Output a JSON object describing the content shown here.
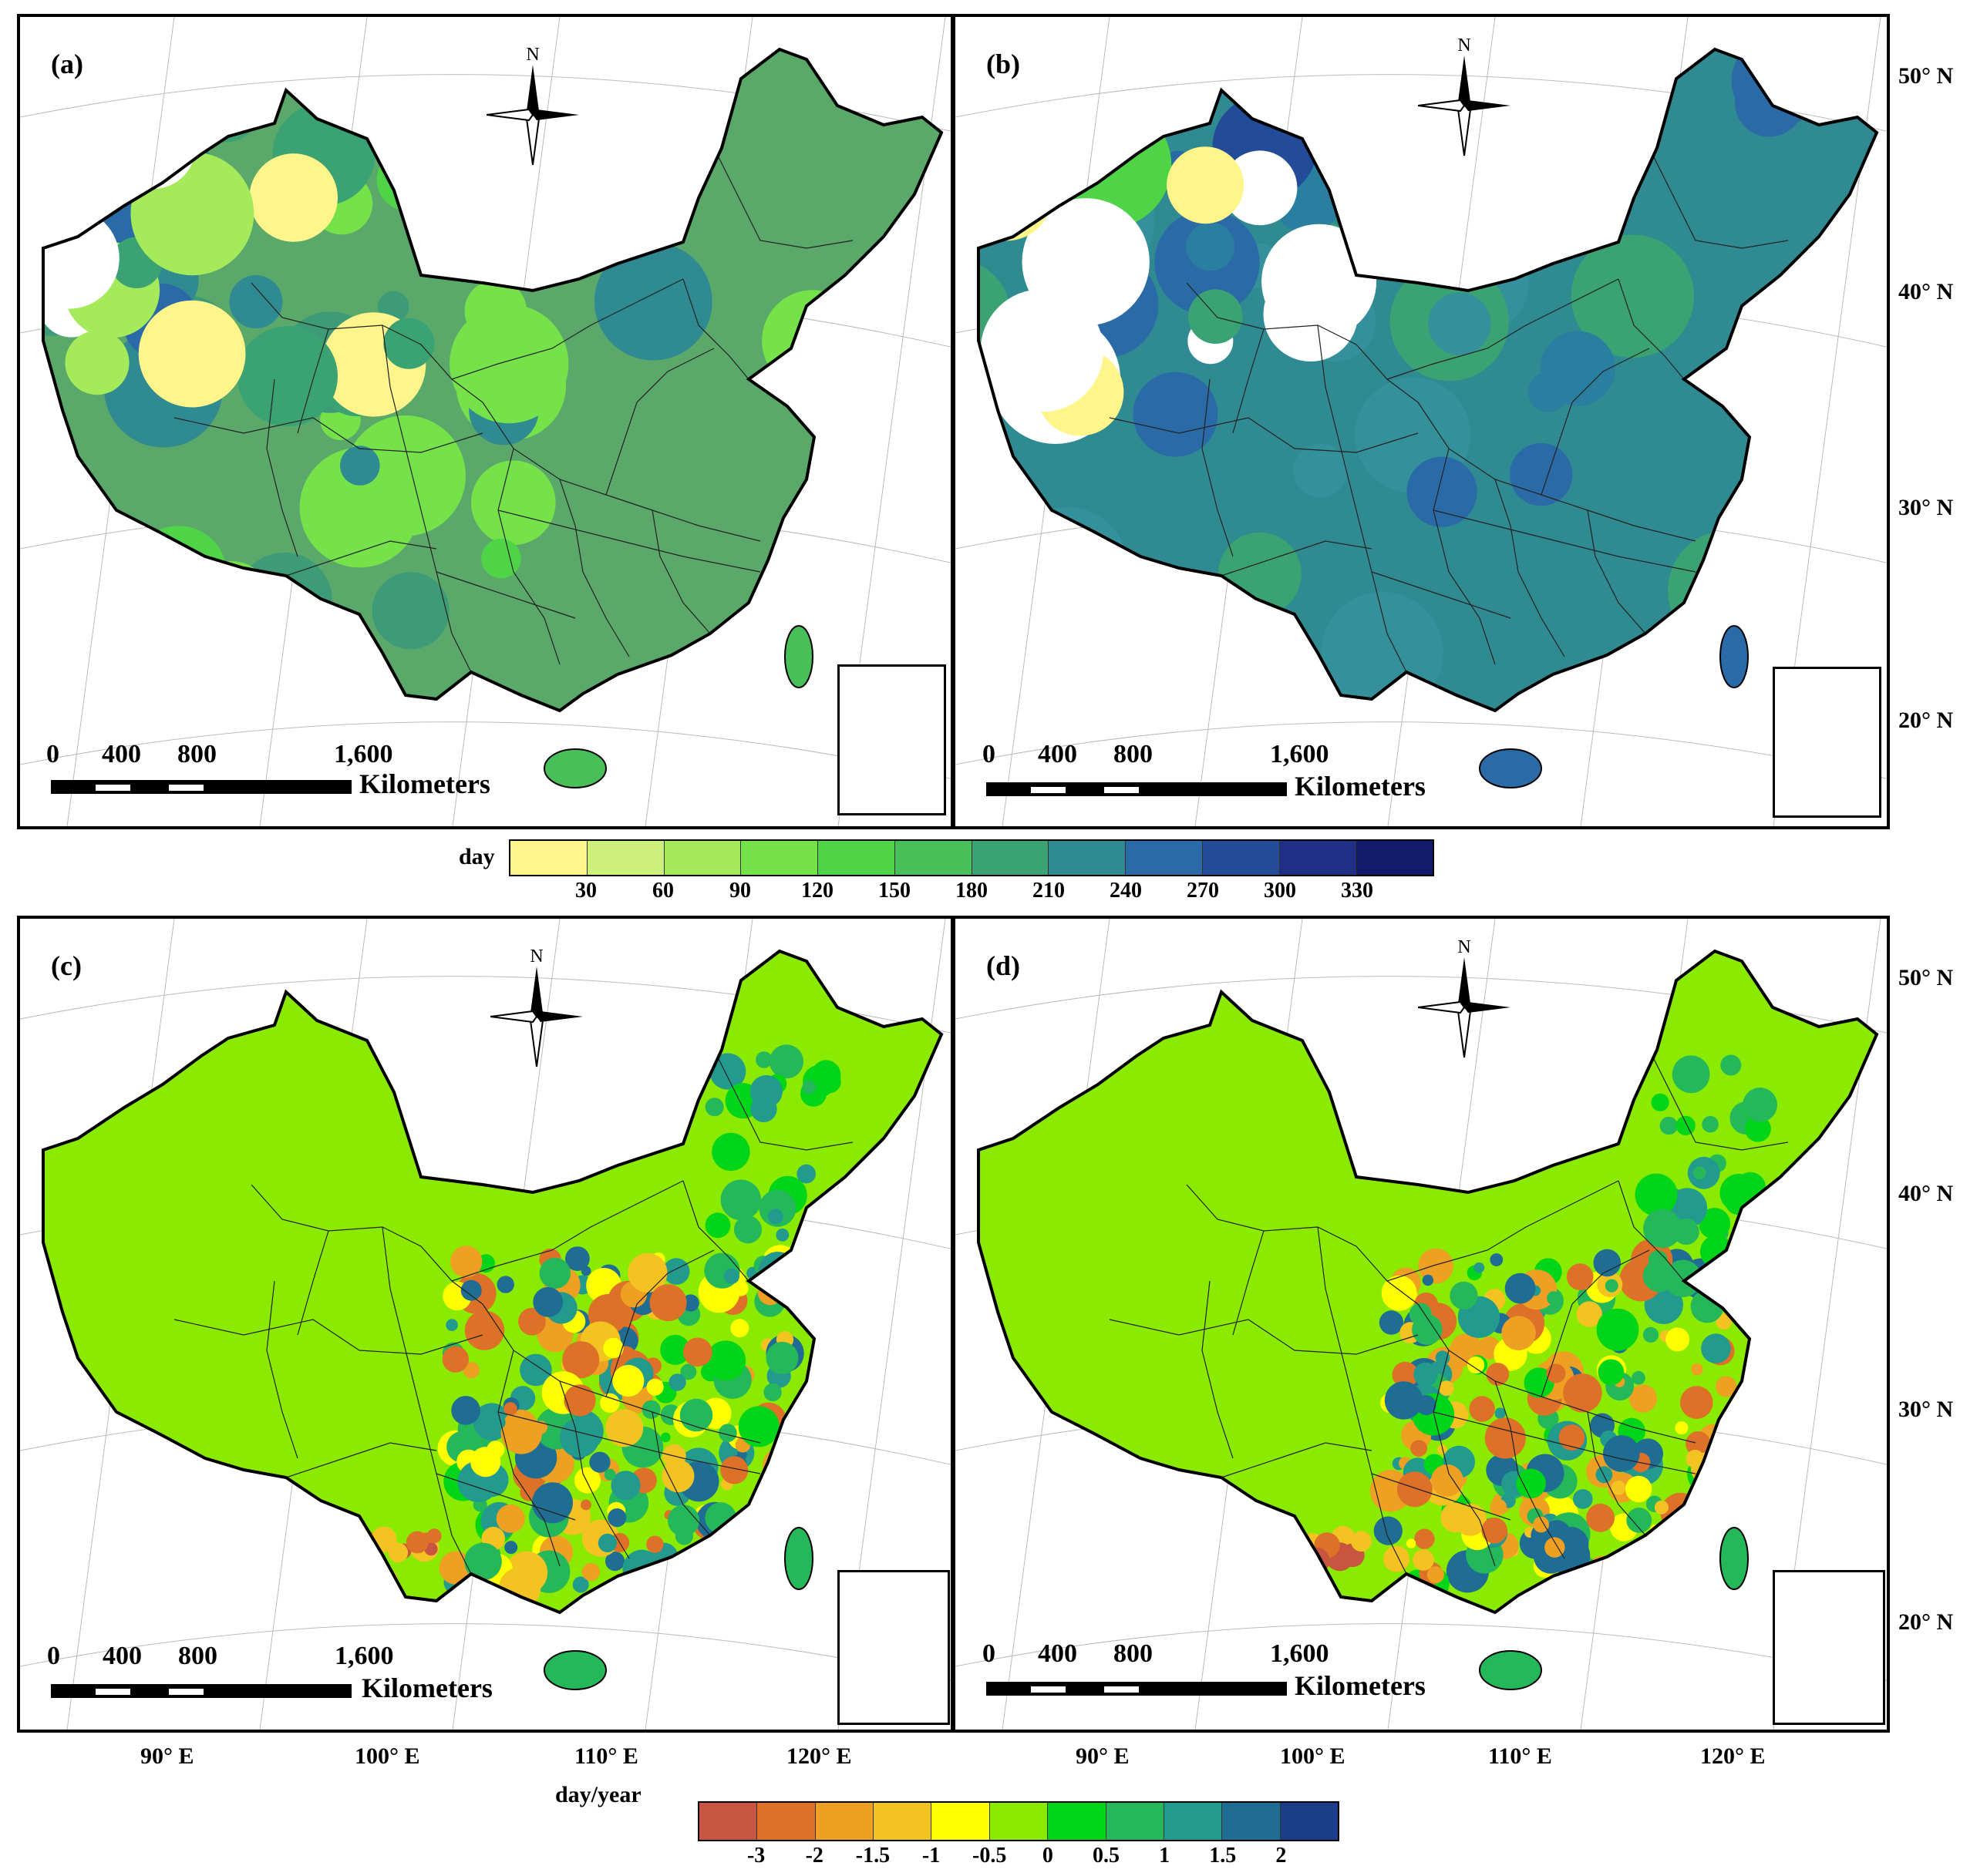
{
  "panels": [
    {
      "label": "(a)",
      "scheme": "days_a"
    },
    {
      "label": "(b)",
      "scheme": "days_b"
    },
    {
      "label": "(c)",
      "scheme": "trend_c"
    },
    {
      "label": "(d)",
      "scheme": "trend_d"
    }
  ],
  "compass": {
    "north": "N"
  },
  "scalebar": {
    "ticks": [
      "0",
      "400",
      "800",
      "1,600"
    ],
    "unit": "Kilometers"
  },
  "lat_labels": [
    "50° N",
    "40° N",
    "30° N",
    "20° N"
  ],
  "lon_labels": [
    "90° E",
    "100° E",
    "110° E",
    "120° E"
  ],
  "legend_days": {
    "title": "day",
    "ticks": [
      "30",
      "60",
      "90",
      "120",
      "150",
      "180",
      "210",
      "240",
      "270",
      "300",
      "330"
    ],
    "colors": [
      "#fff58a",
      "#cdf07a",
      "#a4ea5a",
      "#76e24a",
      "#4fd447",
      "#49bf5a",
      "#3aa273",
      "#2f8a92",
      "#2a6ba7",
      "#234c98",
      "#1f2f86",
      "#121a6b"
    ]
  },
  "legend_trend": {
    "title": "day/year",
    "ticks": [
      "-3",
      "-2",
      "-1.5",
      "-1",
      "-0.5",
      "0",
      "0.5",
      "1",
      "1.5",
      "2"
    ],
    "colors": [
      "#c8553f",
      "#de7128",
      "#eea023",
      "#f3c322",
      "#ffff00",
      "#8aea00",
      "#00d51a",
      "#25b85b",
      "#239a8e",
      "#1f6d93",
      "#1b3e8a"
    ]
  }
}
